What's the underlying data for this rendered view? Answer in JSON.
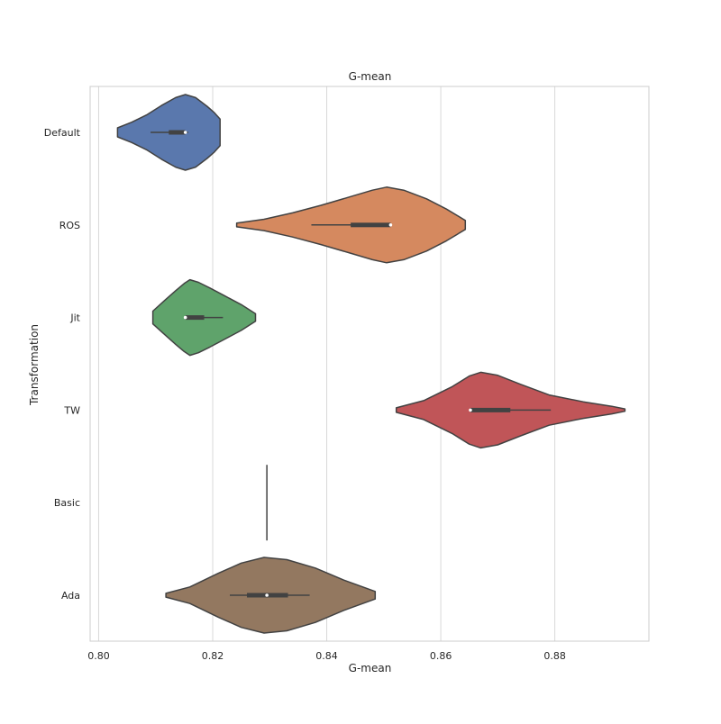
{
  "chart_data": {
    "type": "violin",
    "orientation": "horizontal",
    "title": "G-mean",
    "xlabel": "G-mean",
    "ylabel": "Transformation",
    "xlim": [
      0.7985,
      0.8965
    ],
    "xticks": [
      0.8,
      0.82,
      0.84,
      0.86,
      0.88
    ],
    "xtick_labels": [
      "0.80",
      "0.82",
      "0.84",
      "0.86",
      "0.88"
    ],
    "grid": "vertical",
    "categories": [
      "Default",
      "ROS",
      "Jit",
      "TW",
      "Basic",
      "Ada"
    ],
    "series": [
      {
        "category": "Default",
        "color": "#5a78ad",
        "min": 0.8033,
        "max": 0.8213,
        "whisker": [
          0.8091,
          0.8157
        ],
        "box": [
          0.8123,
          0.8152
        ],
        "median": 0.8152,
        "profile": [
          [
            0.8033,
            0.12
          ],
          [
            0.8058,
            0.27
          ],
          [
            0.8085,
            0.47
          ],
          [
            0.811,
            0.71
          ],
          [
            0.8135,
            0.92
          ],
          [
            0.8152,
            1.0
          ],
          [
            0.817,
            0.92
          ],
          [
            0.819,
            0.69
          ],
          [
            0.8203,
            0.52
          ],
          [
            0.8213,
            0.35
          ]
        ]
      },
      {
        "category": "ROS",
        "color": "#d5895f",
        "min": 0.8242,
        "max": 0.8643,
        "whisker": [
          0.8373,
          0.8512
        ],
        "box": [
          0.8442,
          0.8512
        ],
        "median": 0.8512,
        "profile": [
          [
            0.8242,
            0.05
          ],
          [
            0.829,
            0.15
          ],
          [
            0.834,
            0.32
          ],
          [
            0.839,
            0.52
          ],
          [
            0.844,
            0.74
          ],
          [
            0.848,
            0.92
          ],
          [
            0.8505,
            1.0
          ],
          [
            0.8535,
            0.92
          ],
          [
            0.8575,
            0.69
          ],
          [
            0.861,
            0.42
          ],
          [
            0.8643,
            0.12
          ]
        ]
      },
      {
        "category": "Jit",
        "color": "#5fa36b",
        "min": 0.8095,
        "max": 0.8275,
        "whisker": [
          0.8152,
          0.8218
        ],
        "box": [
          0.8152,
          0.8185
        ],
        "median": 0.8152,
        "profile": [
          [
            0.8095,
            0.17
          ],
          [
            0.8115,
            0.44
          ],
          [
            0.8135,
            0.71
          ],
          [
            0.815,
            0.9
          ],
          [
            0.816,
            1.0
          ],
          [
            0.8175,
            0.93
          ],
          [
            0.8195,
            0.78
          ],
          [
            0.822,
            0.58
          ],
          [
            0.825,
            0.34
          ],
          [
            0.8275,
            0.1
          ]
        ]
      },
      {
        "category": "TW",
        "color": "#c05558",
        "min": 0.8522,
        "max": 0.8923,
        "whisker": [
          0.8652,
          0.8793
        ],
        "box": [
          0.8652,
          0.8722
        ],
        "median": 0.8652,
        "profile": [
          [
            0.8522,
            0.06
          ],
          [
            0.857,
            0.25
          ],
          [
            0.862,
            0.62
          ],
          [
            0.865,
            0.9
          ],
          [
            0.867,
            1.0
          ],
          [
            0.87,
            0.92
          ],
          [
            0.874,
            0.68
          ],
          [
            0.879,
            0.4
          ],
          [
            0.885,
            0.22
          ],
          [
            0.89,
            0.1
          ],
          [
            0.8923,
            0.03
          ]
        ]
      },
      {
        "category": "Basic",
        "color": "#8c6d5a",
        "min": 0.8295,
        "max": 0.8295,
        "degenerate": true
      },
      {
        "category": "Ada",
        "color": "#937860",
        "min": 0.8118,
        "max": 0.8485,
        "whisker": [
          0.823,
          0.837
        ],
        "box": [
          0.826,
          0.8332
        ],
        "median": 0.8295,
        "profile": [
          [
            0.8118,
            0.05
          ],
          [
            0.816,
            0.22
          ],
          [
            0.821,
            0.58
          ],
          [
            0.825,
            0.85
          ],
          [
            0.829,
            1.0
          ],
          [
            0.833,
            0.94
          ],
          [
            0.838,
            0.72
          ],
          [
            0.843,
            0.4
          ],
          [
            0.8485,
            0.1
          ]
        ]
      }
    ]
  }
}
